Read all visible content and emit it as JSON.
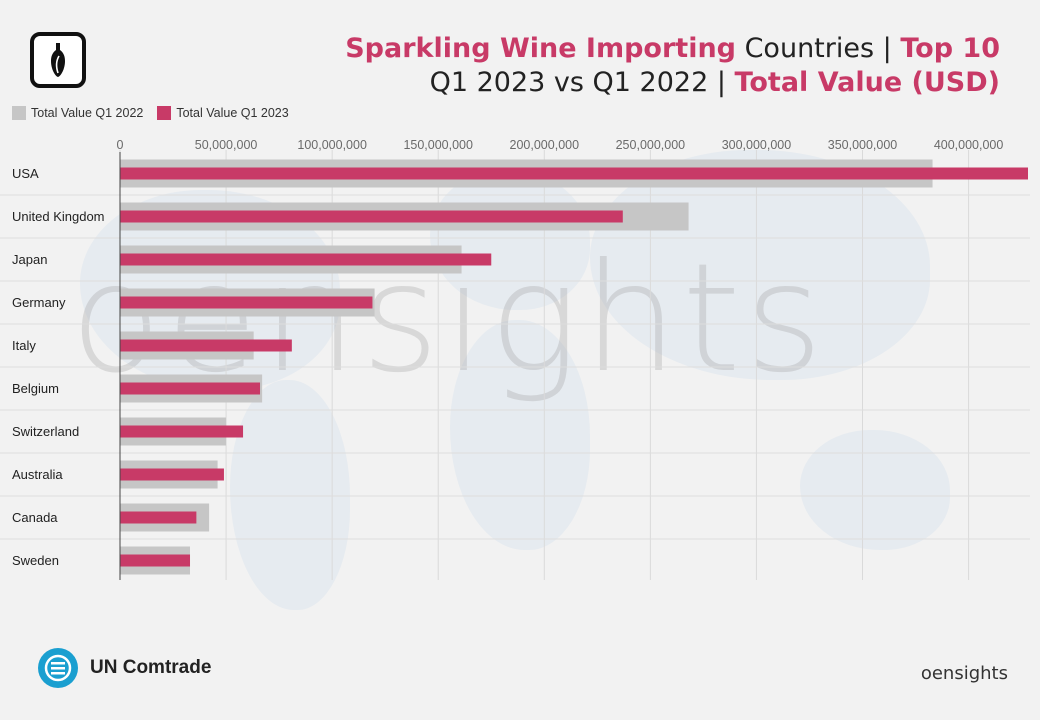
{
  "header": {
    "title_part1": "Sparkling Wine Importing",
    "title_part2": " Countries | ",
    "title_part3": "Top 10",
    "subtitle_part1": "Q1 2023 vs Q1 2022 | ",
    "subtitle_part2": "Total Value (USD)"
  },
  "watermark": "oensights",
  "source": {
    "label": "UN Comtrade",
    "icon": "un-comtrade-icon"
  },
  "brand": "oensights",
  "colors": {
    "q2022": "#c6c6c6",
    "q2023": "#c83a67",
    "accent": "#c83a67"
  },
  "chart_data": {
    "type": "bar",
    "orientation": "horizontal",
    "categories": [
      "USA",
      "United Kingdom",
      "Japan",
      "Germany",
      "Italy",
      "Belgium",
      "Switzerland",
      "Australia",
      "Canada",
      "Sweden"
    ],
    "series": [
      {
        "name": "Total Value Q1 2022",
        "values": [
          383000000,
          268000000,
          161000000,
          120000000,
          63000000,
          67000000,
          50000000,
          46000000,
          42000000,
          33000000
        ]
      },
      {
        "name": "Total Value Q1 2023",
        "values": [
          428000000,
          237000000,
          175000000,
          119000000,
          81000000,
          66000000,
          58000000,
          49000000,
          36000000,
          33000000
        ]
      }
    ],
    "xlim": [
      0,
      428000000
    ],
    "xticks": [
      0,
      50000000,
      100000000,
      150000000,
      200000000,
      250000000,
      300000000,
      350000000,
      400000000
    ],
    "xtick_labels": [
      "0",
      "50,000,000",
      "100,000,000",
      "150,000,000",
      "200,000,000",
      "250,000,000",
      "300,000,000",
      "350,000,000",
      "400,000,000"
    ],
    "grid": true,
    "legend_position": "top-left"
  }
}
